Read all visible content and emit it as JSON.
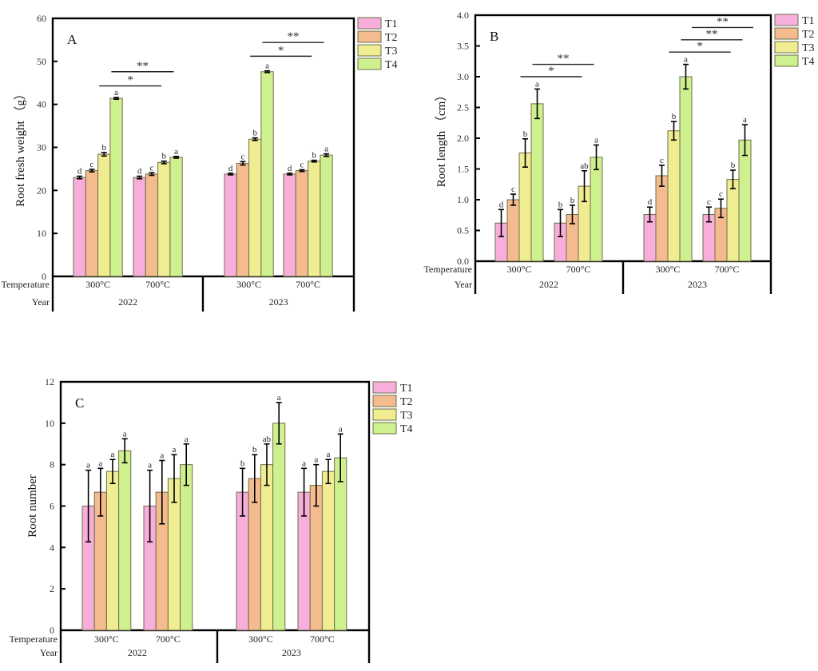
{
  "colors": {
    "T1": "#F8AEDB",
    "T2": "#F4BB8E",
    "T3": "#F0EC92",
    "T4": "#CFF08E"
  },
  "chart_data": [
    {
      "id": "A",
      "type": "bar",
      "panel_label": "A",
      "ylabel": "Root fresh weight （g）",
      "ylim": [
        0,
        60
      ],
      "yticks": [
        0,
        10,
        20,
        30,
        40,
        50,
        60
      ],
      "ytick_labels": [
        "0",
        "10",
        "20",
        "30",
        "40",
        "50",
        "60"
      ],
      "row_labels": {
        "temperature": "Temperature",
        "year": "Year"
      },
      "legend": [
        "T1",
        "T2",
        "T3",
        "T4"
      ],
      "legend_position": "right-top-outside",
      "groups": [
        {
          "year": "2022",
          "temperature": "300°C",
          "values": [
            23.0,
            24.6,
            28.4,
            41.4
          ],
          "errors": [
            0.3,
            0.3,
            0.4,
            0.2
          ],
          "letters": [
            "d",
            "c",
            "b",
            "a"
          ]
        },
        {
          "year": "2022",
          "temperature": "700°C",
          "values": [
            23.0,
            23.8,
            26.5,
            27.7
          ],
          "errors": [
            0.3,
            0.3,
            0.3,
            0.2
          ],
          "letters": [
            "d",
            "c",
            "b",
            "a"
          ]
        },
        {
          "year": "2023",
          "temperature": "300°C",
          "values": [
            23.8,
            26.3,
            31.9,
            47.6
          ],
          "errors": [
            0.2,
            0.4,
            0.3,
            0.2
          ],
          "letters": [
            "d",
            "c",
            "b",
            "a"
          ]
        },
        {
          "year": "2023",
          "temperature": "700°C",
          "values": [
            23.8,
            24.6,
            26.8,
            28.2
          ],
          "errors": [
            0.2,
            0.2,
            0.2,
            0.3
          ],
          "letters": [
            "d",
            "c",
            "b",
            "a"
          ]
        }
      ],
      "significance": [
        {
          "year": "2022",
          "from": [
            0,
            2
          ],
          "to": [
            1,
            2
          ],
          "label": "*",
          "level_value": 44.3
        },
        {
          "year": "2022",
          "from": [
            0,
            3
          ],
          "to": [
            1,
            3
          ],
          "label": "**",
          "level_value": 47.6
        },
        {
          "year": "2023",
          "from": [
            2,
            2
          ],
          "to": [
            3,
            2
          ],
          "label": "*",
          "level_value": 51.2
        },
        {
          "year": "2023",
          "from": [
            2,
            3
          ],
          "to": [
            3,
            3
          ],
          "label": "**",
          "level_value": 54.4
        }
      ]
    },
    {
      "id": "B",
      "type": "bar",
      "panel_label": "B",
      "ylabel": "Root length （cm）",
      "ylim": [
        0,
        4.0
      ],
      "yticks": [
        0,
        0.5,
        1.0,
        1.5,
        2.0,
        2.5,
        3.0,
        3.5,
        4.0
      ],
      "ytick_labels": [
        "0.0",
        "0.5",
        "1.0",
        "1.5",
        "2.0",
        "2.5",
        "3.0",
        "3.5",
        "4.0"
      ],
      "row_labels": {
        "temperature": "Temperature",
        "year": "Year"
      },
      "legend": [
        "T1",
        "T2",
        "T3",
        "T4"
      ],
      "legend_position": "right-top-outside",
      "groups": [
        {
          "year": "2022",
          "temperature": "300°C",
          "values": [
            0.62,
            1.0,
            1.76,
            2.56
          ],
          "errors": [
            0.22,
            0.09,
            0.23,
            0.24
          ],
          "letters": [
            "d",
            "c",
            "b",
            "a"
          ]
        },
        {
          "year": "2022",
          "temperature": "700°C",
          "values": [
            0.62,
            0.76,
            1.22,
            1.69
          ],
          "errors": [
            0.22,
            0.15,
            0.25,
            0.2
          ],
          "letters": [
            "b",
            "b",
            "ab",
            "a"
          ]
        },
        {
          "year": "2023",
          "temperature": "300°C",
          "values": [
            0.76,
            1.39,
            2.12,
            3.0
          ],
          "errors": [
            0.12,
            0.17,
            0.15,
            0.2
          ],
          "letters": [
            "d",
            "c",
            "b",
            "a"
          ]
        },
        {
          "year": "2023",
          "temperature": "700°C",
          "values": [
            0.76,
            0.86,
            1.33,
            1.97
          ],
          "errors": [
            0.12,
            0.15,
            0.15,
            0.25
          ],
          "letters": [
            "c",
            "c",
            "b",
            "a"
          ]
        }
      ],
      "significance": [
        {
          "year": "2022",
          "from": [
            0,
            2
          ],
          "to": [
            1,
            2
          ],
          "label": "*",
          "level_value": 3.0
        },
        {
          "year": "2022",
          "from": [
            0,
            3
          ],
          "to": [
            1,
            3
          ],
          "label": "**",
          "level_value": 3.2
        },
        {
          "year": "2023",
          "from": [
            2,
            2
          ],
          "to": [
            3,
            2
          ],
          "label": "*",
          "level_value": 3.4
        },
        {
          "year": "2023",
          "from": [
            2,
            3
          ],
          "to": [
            3,
            3
          ],
          "label": "**",
          "level_value": 3.6
        },
        {
          "year": "2023",
          "from": [
            2,
            3.9
          ],
          "to": [
            3,
            3.9
          ],
          "label": "**",
          "level_value": 3.8
        }
      ]
    },
    {
      "id": "C",
      "type": "bar",
      "panel_label": "C",
      "ylabel": "Root number",
      "ylim": [
        0,
        12
      ],
      "yticks": [
        0,
        2,
        4,
        6,
        8,
        10,
        12
      ],
      "ytick_labels": [
        "0",
        "2",
        "4",
        "6",
        "8",
        "10",
        "12"
      ],
      "row_labels": {
        "temperature": "Temperature",
        "year": "Year"
      },
      "legend": [
        "T1",
        "T2",
        "T3",
        "T4"
      ],
      "legend_position": "right-top-outside",
      "groups": [
        {
          "year": "2022",
          "temperature": "300°C",
          "values": [
            6.0,
            6.67,
            7.67,
            8.67
          ],
          "errors": [
            1.73,
            1.15,
            0.58,
            0.58
          ],
          "letters": [
            "a",
            "a",
            "a",
            "a"
          ]
        },
        {
          "year": "2022",
          "temperature": "700°C",
          "values": [
            6.0,
            6.67,
            7.33,
            8.0
          ],
          "errors": [
            1.73,
            1.53,
            1.15,
            1.0
          ],
          "letters": [
            "a",
            "a",
            "a",
            "a"
          ]
        },
        {
          "year": "2023",
          "temperature": "300°C",
          "values": [
            6.67,
            7.33,
            8.0,
            10.0
          ],
          "errors": [
            1.15,
            1.15,
            1.0,
            1.0
          ],
          "letters": [
            "b",
            "b",
            "ab",
            "a"
          ]
        },
        {
          "year": "2023",
          "temperature": "700°C",
          "values": [
            6.67,
            7.0,
            7.67,
            8.33
          ],
          "errors": [
            1.15,
            1.0,
            0.58,
            1.15
          ],
          "letters": [
            "a",
            "a",
            "a",
            "a"
          ]
        }
      ],
      "significance": []
    }
  ]
}
